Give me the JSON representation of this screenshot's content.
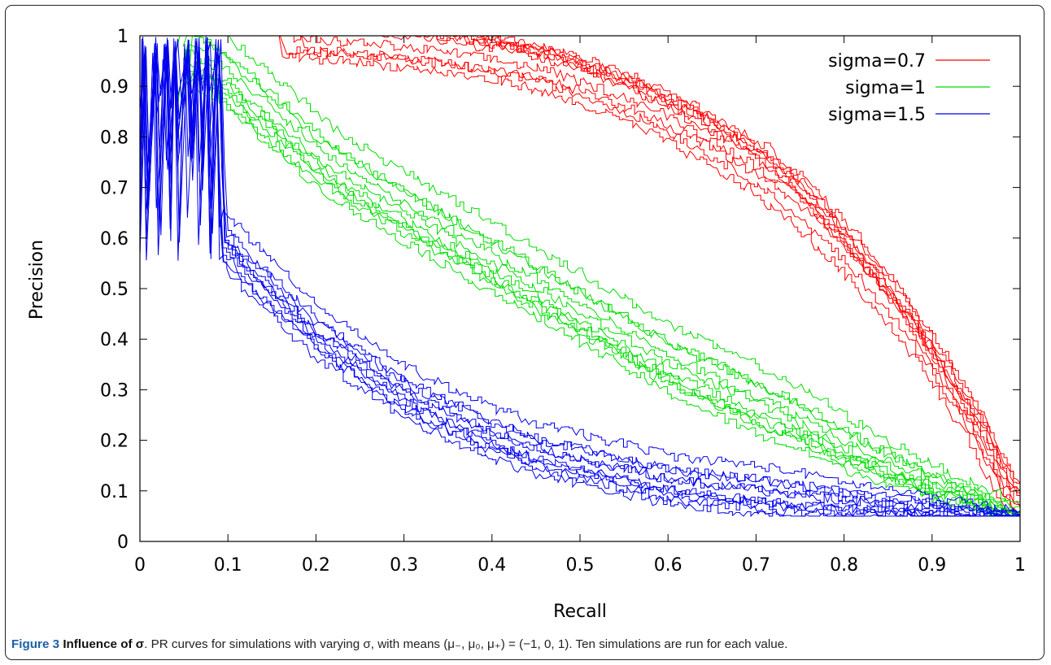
{
  "caption": {
    "label": "Figure 3",
    "title": "Influence of σ",
    "text": ". PR curves for simulations with varying σ, with means (μ₋, μ₀, μ₊) = (−1, 0, 1). Ten simulations are run for each value."
  },
  "chart_data": {
    "type": "line",
    "title": "",
    "xlabel": "Recall",
    "ylabel": "Precision",
    "xlim": [
      0,
      1
    ],
    "ylim": [
      0,
      1
    ],
    "xticks": [
      "0",
      "0.1",
      "0.2",
      "0.3",
      "0.4",
      "0.5",
      "0.6",
      "0.7",
      "0.8",
      "0.9",
      "1"
    ],
    "yticks": [
      "0",
      "0.1",
      "0.2",
      "0.3",
      "0.4",
      "0.5",
      "0.6",
      "0.7",
      "0.8",
      "0.9",
      "1"
    ],
    "grid": false,
    "legend_position": "top-right",
    "runs_per_series": 10,
    "series": [
      {
        "name": "sigma=0.7",
        "color": "#ff0000",
        "x": [
          0.15,
          0.25,
          0.35,
          0.45,
          0.5,
          0.55,
          0.6,
          0.65,
          0.7,
          0.75,
          0.8,
          0.85,
          0.9,
          0.95,
          0.98,
          1.0
        ],
        "y": [
          1.0,
          0.99,
          0.97,
          0.94,
          0.91,
          0.88,
          0.84,
          0.79,
          0.74,
          0.67,
          0.58,
          0.48,
          0.36,
          0.22,
          0.12,
          0.055
        ]
      },
      {
        "name": "sigma=1",
        "color": "#00dd00",
        "x": [
          0.04,
          0.08,
          0.12,
          0.16,
          0.2,
          0.25,
          0.3,
          0.35,
          0.4,
          0.45,
          0.5,
          0.55,
          0.6,
          0.65,
          0.7,
          0.75,
          0.8,
          0.85,
          0.9,
          0.95,
          1.0
        ],
        "y": [
          1.0,
          0.96,
          0.9,
          0.84,
          0.78,
          0.72,
          0.67,
          0.62,
          0.57,
          0.52,
          0.47,
          0.42,
          0.37,
          0.33,
          0.29,
          0.25,
          0.2,
          0.16,
          0.12,
          0.09,
          0.055
        ]
      },
      {
        "name": "sigma=1.5",
        "color": "#0000ee",
        "x": [
          0.01,
          0.02,
          0.04,
          0.06,
          0.08,
          0.1,
          0.12,
          0.15,
          0.2,
          0.25,
          0.3,
          0.35,
          0.4,
          0.45,
          0.5,
          0.55,
          0.6,
          0.7,
          0.8,
          0.9,
          1.0
        ],
        "y": [
          0.85,
          0.78,
          0.72,
          0.67,
          0.62,
          0.58,
          0.54,
          0.49,
          0.41,
          0.35,
          0.29,
          0.25,
          0.21,
          0.18,
          0.16,
          0.14,
          0.12,
          0.1,
          0.08,
          0.065,
          0.05
        ]
      }
    ]
  }
}
